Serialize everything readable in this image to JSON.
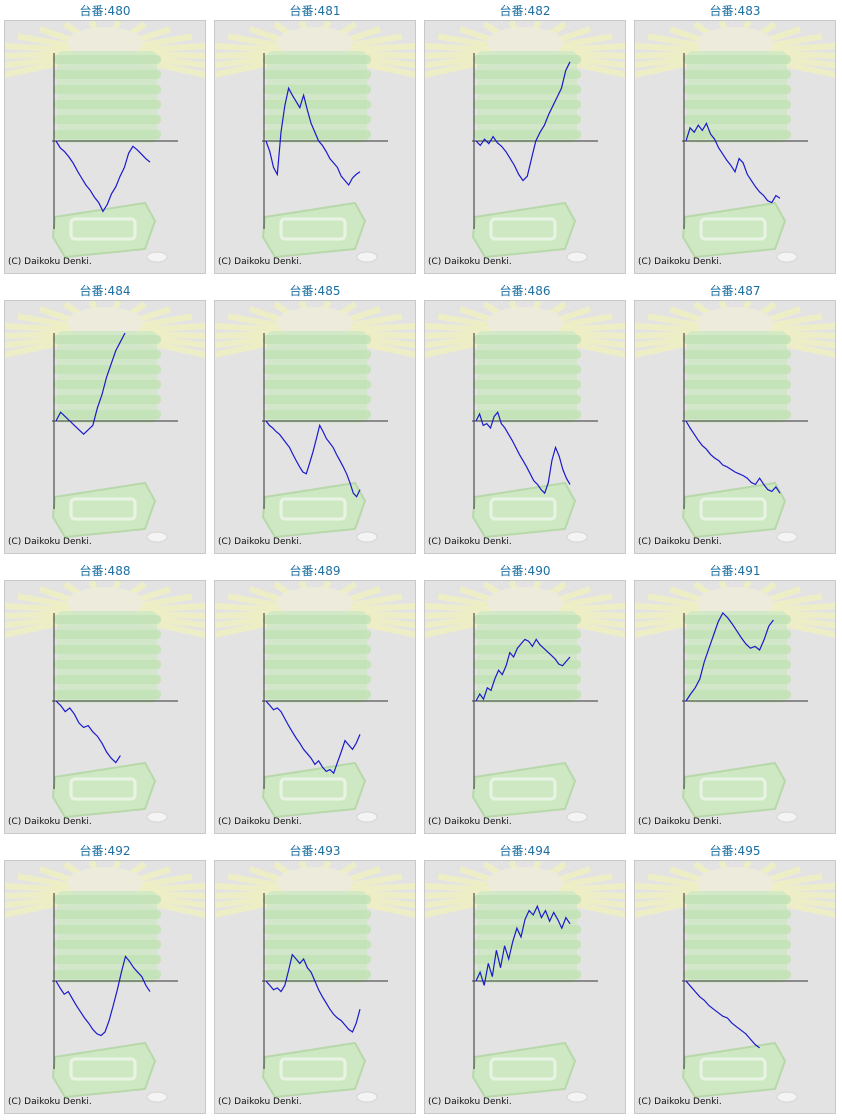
{
  "copyright": "(C) Daikoku Denki.",
  "colors": {
    "title": "#1c6fa3",
    "line": "#1a1acc",
    "axis": "#333333",
    "background": "#e3e3e3"
  },
  "chart_data": [
    {
      "type": "line",
      "title": "台番:480",
      "y": [
        0,
        -8,
        -12,
        -18,
        -25,
        -34,
        -42,
        -50,
        -56,
        -64,
        -70,
        -80,
        -72,
        -60,
        -52,
        -40,
        -30,
        -14,
        -6,
        -10,
        -15,
        -20,
        -24
      ]
    },
    {
      "type": "line",
      "title": "台番:481",
      "y": [
        0,
        -12,
        -30,
        -38,
        10,
        40,
        60,
        52,
        45,
        38,
        52,
        35,
        20,
        10,
        0,
        -5,
        -12,
        -20,
        -25,
        -30,
        -40,
        -45,
        -50,
        -42,
        -38,
        -35
      ]
    },
    {
      "type": "line",
      "title": "台番:482",
      "y": [
        0,
        -5,
        2,
        -3,
        5,
        -2,
        -6,
        -12,
        -20,
        -28,
        -38,
        -45,
        -40,
        -20,
        0,
        10,
        18,
        30,
        40,
        50,
        60,
        80,
        90
      ]
    },
    {
      "type": "line",
      "title": "台番:483",
      "y": [
        0,
        15,
        10,
        18,
        12,
        20,
        8,
        2,
        -8,
        -15,
        -22,
        -28,
        -35,
        -20,
        -25,
        -38,
        -45,
        -52,
        -58,
        -62,
        -68,
        -70,
        -62,
        -65
      ]
    },
    {
      "type": "line",
      "title": "台番:484",
      "y": [
        0,
        10,
        5,
        0,
        -5,
        -10,
        -15,
        -10,
        -5,
        15,
        30,
        50,
        65,
        80,
        90,
        100
      ]
    },
    {
      "type": "line",
      "title": "台番:485",
      "y": [
        0,
        -5,
        -8,
        -12,
        -15,
        -20,
        -25,
        -30,
        -38,
        -45,
        -52,
        -58,
        -60,
        -48,
        -35,
        -20,
        -5,
        -12,
        -20,
        -25,
        -30,
        -38,
        -45,
        -52,
        -60,
        -70,
        -82,
        -86,
        -78
      ]
    },
    {
      "type": "line",
      "title": "台番:486",
      "y": [
        0,
        8,
        -5,
        -3,
        -8,
        5,
        10,
        -3,
        -8,
        -15,
        -22,
        -30,
        -38,
        -45,
        -52,
        -60,
        -68,
        -72,
        -78,
        -82,
        -70,
        -45,
        -30,
        -40,
        -55,
        -65,
        -72
      ]
    },
    {
      "type": "line",
      "title": "台番:487",
      "y": [
        0,
        -8,
        -15,
        -22,
        -28,
        -32,
        -38,
        -42,
        -45,
        -50,
        -52,
        -55,
        -58,
        -60,
        -62,
        -65,
        -70,
        -72,
        -65,
        -72,
        -78,
        -80,
        -75,
        -82
      ]
    },
    {
      "type": "line",
      "title": "台番:488",
      "y": [
        0,
        -5,
        -12,
        -8,
        -15,
        -25,
        -30,
        -28,
        -35,
        -40,
        -48,
        -58,
        -65,
        -70,
        -62
      ]
    },
    {
      "type": "line",
      "title": "台番:489",
      "y": [
        0,
        -5,
        -10,
        -8,
        -12,
        -20,
        -28,
        -35,
        -42,
        -48,
        -55,
        -60,
        -65,
        -72,
        -68,
        -75,
        -80,
        -78,
        -82,
        -70,
        -58,
        -45,
        -50,
        -55,
        -48,
        -38
      ]
    },
    {
      "type": "line",
      "title": "台番:490",
      "y": [
        0,
        8,
        2,
        15,
        12,
        25,
        35,
        30,
        40,
        55,
        50,
        60,
        65,
        70,
        68,
        62,
        70,
        64,
        60,
        56,
        52,
        48,
        42,
        40,
        45,
        50
      ]
    },
    {
      "type": "line",
      "title": "台番:491",
      "y": [
        0,
        8,
        15,
        25,
        45,
        60,
        75,
        90,
        100,
        95,
        88,
        80,
        72,
        65,
        60,
        62,
        58,
        70,
        85,
        92
      ]
    },
    {
      "type": "line",
      "title": "台番:492",
      "y": [
        0,
        -8,
        -15,
        -12,
        -20,
        -28,
        -35,
        -42,
        -48,
        -55,
        -60,
        -62,
        -58,
        -45,
        -28,
        -10,
        10,
        28,
        22,
        15,
        10,
        5,
        -5,
        -12
      ]
    },
    {
      "type": "line",
      "title": "台番:493",
      "y": [
        0,
        -5,
        -10,
        -8,
        -12,
        -5,
        12,
        30,
        25,
        20,
        25,
        15,
        10,
        0,
        -10,
        -18,
        -25,
        -32,
        -38,
        -42,
        -45,
        -50,
        -55,
        -58,
        -48,
        -32
      ]
    },
    {
      "type": "line",
      "title": "台番:494",
      "y": [
        0,
        10,
        -5,
        20,
        5,
        35,
        15,
        40,
        25,
        45,
        60,
        50,
        70,
        80,
        75,
        85,
        72,
        80,
        68,
        78,
        70,
        60,
        72,
        65
      ]
    },
    {
      "type": "line",
      "title": "台番:495",
      "y": [
        0,
        -6,
        -12,
        -18,
        -22,
        -28,
        -32,
        -36,
        -40,
        -42,
        -48,
        -52,
        -56,
        -60,
        -66,
        -72,
        -76
      ]
    }
  ]
}
